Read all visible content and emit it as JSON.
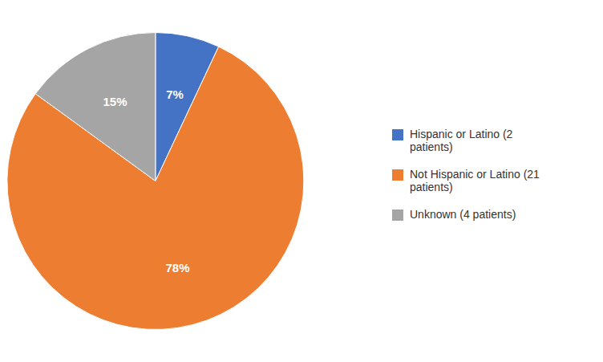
{
  "chart_data": {
    "type": "pie",
    "categories": [
      "Hispanic or Latino (2\npatients)",
      "Not Hispanic or Latino (21\npatients)",
      "Unknown (4 patients)"
    ],
    "values": [
      7,
      78,
      15
    ],
    "value_labels": [
      "7%",
      "78%",
      "15%"
    ],
    "colors": [
      "#4472C4",
      "#ED7D31",
      "#A5A5A5"
    ],
    "data_labels": true,
    "legend": "right"
  }
}
